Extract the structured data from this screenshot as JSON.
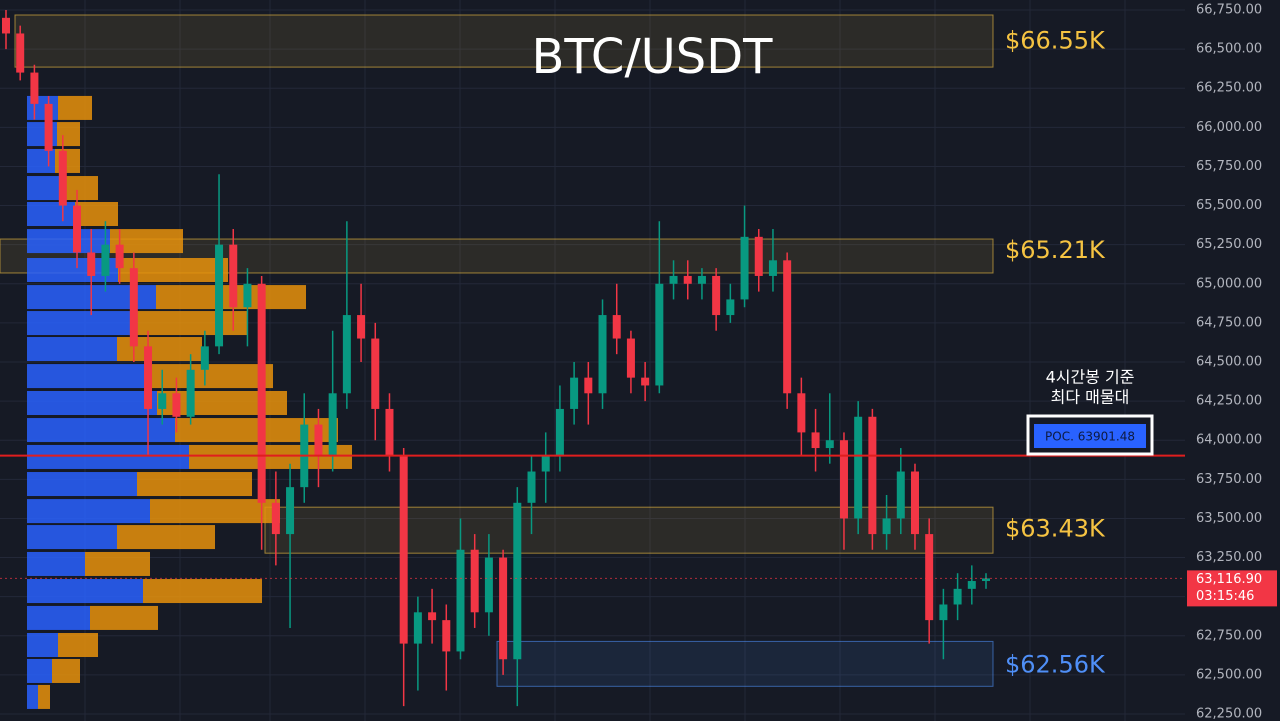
{
  "chart_data": {
    "type": "candlestick",
    "title": "BTC/USDT",
    "ylim": [
      62250,
      66750
    ],
    "yticks": [
      {
        "value": 62250,
        "label": "62,250.00"
      },
      {
        "value": 62500,
        "label": "62,500.00"
      },
      {
        "value": 62750,
        "label": "62,750.00"
      },
      {
        "value": 63000,
        "label": "63,000.00"
      },
      {
        "value": 63250,
        "label": "63,250.00"
      },
      {
        "value": 63500,
        "label": "63,500.00"
      },
      {
        "value": 63750,
        "label": "63,750.00"
      },
      {
        "value": 64000,
        "label": "64,000.00"
      },
      {
        "value": 64250,
        "label": "64,250.00"
      },
      {
        "value": 64500,
        "label": "64,500.00"
      },
      {
        "value": 64750,
        "label": "64,750.00"
      },
      {
        "value": 65000,
        "label": "65,000.00"
      },
      {
        "value": 65250,
        "label": "65,250.00"
      },
      {
        "value": 65500,
        "label": "65,500.00"
      },
      {
        "value": 65750,
        "label": "65,750.00"
      },
      {
        "value": 66000,
        "label": "66,000.00"
      },
      {
        "value": 66250,
        "label": "66,250.00"
      },
      {
        "value": 66500,
        "label": "66,500.00"
      },
      {
        "value": 66750,
        "label": "66,750.00"
      }
    ],
    "grid": true,
    "up_color": "#089981",
    "down_color": "#f23645",
    "ohlc": [
      [
        66700,
        66750,
        66500,
        66600
      ],
      [
        66600,
        66650,
        66300,
        66350
      ],
      [
        66350,
        66400,
        66050,
        66150
      ],
      [
        66150,
        66200,
        65750,
        65850
      ],
      [
        65850,
        65950,
        65400,
        65500
      ],
      [
        65500,
        65600,
        65100,
        65200
      ],
      [
        65200,
        65350,
        64800,
        65050
      ],
      [
        65050,
        65400,
        64950,
        65250
      ],
      [
        65250,
        65350,
        65000,
        65100
      ],
      [
        65100,
        65200,
        64500,
        64600
      ],
      [
        64600,
        64700,
        63900,
        64200
      ],
      [
        64200,
        64450,
        64100,
        64300
      ],
      [
        64300,
        64400,
        64050,
        64150
      ],
      [
        64150,
        64550,
        64100,
        64450
      ],
      [
        64450,
        64700,
        64350,
        64600
      ],
      [
        64600,
        65700,
        64550,
        65250
      ],
      [
        65250,
        65350,
        64700,
        64850
      ],
      [
        64850,
        65100,
        64600,
        65000
      ],
      [
        65000,
        65050,
        63300,
        63600
      ],
      [
        63600,
        63800,
        63200,
        63400
      ],
      [
        63400,
        63850,
        62800,
        63700
      ],
      [
        63700,
        64300,
        63600,
        64100
      ],
      [
        64100,
        64200,
        63700,
        63900
      ],
      [
        63900,
        64700,
        63800,
        64300
      ],
      [
        64300,
        65400,
        64200,
        64800
      ],
      [
        64800,
        65000,
        64500,
        64650
      ],
      [
        64650,
        64750,
        64000,
        64200
      ],
      [
        64200,
        64300,
        63800,
        63900
      ],
      [
        63900,
        63950,
        62300,
        62700
      ],
      [
        62700,
        63000,
        62400,
        62900
      ],
      [
        62900,
        63050,
        62700,
        62850
      ],
      [
        62850,
        62950,
        62400,
        62650
      ],
      [
        62650,
        63500,
        62600,
        63300
      ],
      [
        63300,
        63400,
        62800,
        62900
      ],
      [
        62900,
        63400,
        62750,
        63250
      ],
      [
        63250,
        63300,
        62500,
        62600
      ],
      [
        62600,
        63700,
        62300,
        63600
      ],
      [
        63600,
        63900,
        63400,
        63800
      ],
      [
        63800,
        64050,
        63600,
        63900
      ],
      [
        63900,
        64350,
        63800,
        64200
      ],
      [
        64200,
        64500,
        64100,
        64400
      ],
      [
        64400,
        64500,
        64100,
        64300
      ],
      [
        64300,
        64900,
        64200,
        64800
      ],
      [
        64800,
        65000,
        64550,
        64650
      ],
      [
        64650,
        64700,
        64300,
        64400
      ],
      [
        64400,
        64500,
        64250,
        64350
      ],
      [
        64350,
        65400,
        64300,
        65000
      ],
      [
        65000,
        65150,
        64900,
        65050
      ],
      [
        65050,
        65150,
        64900,
        65000
      ],
      [
        65000,
        65100,
        64900,
        65050
      ],
      [
        65050,
        65100,
        64700,
        64800
      ],
      [
        64800,
        65000,
        64750,
        64900
      ],
      [
        64900,
        65500,
        64850,
        65300
      ],
      [
        65300,
        65350,
        64950,
        65050
      ],
      [
        65050,
        65350,
        64950,
        65150
      ],
      [
        65150,
        65200,
        64200,
        64300
      ],
      [
        64300,
        64400,
        63900,
        64050
      ],
      [
        64050,
        64200,
        63800,
        63950
      ],
      [
        63950,
        64300,
        63850,
        64000
      ],
      [
        64000,
        64050,
        63300,
        63500
      ],
      [
        63500,
        64250,
        63400,
        64150
      ],
      [
        64150,
        64200,
        63300,
        63400
      ],
      [
        63400,
        63650,
        63300,
        63500
      ],
      [
        63500,
        63950,
        63400,
        63800
      ],
      [
        63800,
        63850,
        63300,
        63400
      ],
      [
        63400,
        63500,
        62700,
        62850
      ],
      [
        62850,
        63050,
        62600,
        62950
      ],
      [
        62950,
        63150,
        62850,
        63050
      ],
      [
        63050,
        63200,
        62950,
        63100
      ],
      [
        63100,
        63150,
        63050,
        63116.9
      ]
    ],
    "volume_profile": {
      "buy_color": "#2962ff",
      "sell_color": "#e8920c",
      "prices": [
        66124,
        65957,
        65785,
        65612,
        65446,
        65273,
        65088,
        64915,
        64749,
        64583,
        64410,
        64238,
        64065,
        63893,
        63720,
        63547,
        63381,
        63209,
        63036,
        62864,
        62691,
        62525,
        62359
      ],
      "buy": [
        31,
        30,
        28,
        33,
        48,
        83,
        91,
        129,
        110,
        90,
        123,
        130,
        148,
        162,
        110,
        123,
        90,
        58,
        116,
        63,
        31,
        25,
        11
      ],
      "sell": [
        34,
        23,
        25,
        38,
        43,
        73,
        110,
        150,
        111,
        85,
        123,
        130,
        163,
        163,
        115,
        130,
        98,
        65,
        119,
        68,
        40,
        28,
        12
      ]
    },
    "zones": [
      {
        "label": "$66.55K",
        "value": 66550,
        "top": 66718,
        "bottom": 66385,
        "color": "#f5c342"
      },
      {
        "label": "$65.21K",
        "value": 65210,
        "top": 65286,
        "bottom": 65069,
        "color": "#f5c342"
      },
      {
        "label": "$63.43K",
        "value": 63430,
        "top": 63572,
        "bottom": 63278,
        "color": "#f5c342"
      },
      {
        "label": "$62.56K",
        "value": 62560,
        "top": 62714,
        "bottom": 62427,
        "color": "#4f8ff7"
      }
    ],
    "poc": {
      "value": 63901.48,
      "label": "POC. 63901.48",
      "color": "#e01e1e",
      "note": [
        "4시간봉 기준",
        "최다 매물대"
      ]
    },
    "current_price": {
      "value": 63116.9,
      "label": "63,116.90",
      "countdown": "03:15:46"
    }
  }
}
